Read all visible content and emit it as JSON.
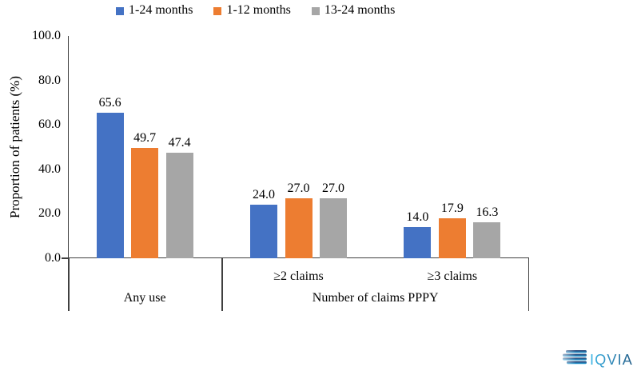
{
  "legend": {
    "items": [
      {
        "label": "1-24 months",
        "color": "#4472C4"
      },
      {
        "label": "1-12 months",
        "color": "#ED7D31"
      },
      {
        "label": "13-24 months",
        "color": "#A6A6A6"
      }
    ]
  },
  "chart_data": {
    "type": "bar",
    "title": "",
    "xlabel": "",
    "ylabel": "Proportion of patients (%)",
    "ylim": [
      0,
      100
    ],
    "yticks": [
      0,
      20,
      40,
      60,
      80,
      100
    ],
    "grid": false,
    "legend_position": "top",
    "categories": [
      "Any use",
      "≥2 claims",
      "≥3 claims"
    ],
    "series": [
      {
        "name": "1-24 months",
        "color": "#4472C4",
        "values": [
          65.6,
          24.0,
          14.0
        ]
      },
      {
        "name": "1-12 months",
        "color": "#ED7D31",
        "values": [
          49.7,
          27.0,
          17.9
        ]
      },
      {
        "name": "13-24 months",
        "color": "#A6A6A6",
        "values": [
          47.4,
          27.0,
          16.3
        ]
      }
    ],
    "x_axis": {
      "sub_labels": [
        "",
        "≥2 claims",
        "≥3 claims"
      ],
      "group_labels": [
        {
          "label": "Any use",
          "start": 0,
          "end": 1
        },
        {
          "label": "Number of claims PPPY",
          "start": 1,
          "end": 3
        }
      ]
    }
  },
  "logo": {
    "brand": "IQVIA"
  }
}
